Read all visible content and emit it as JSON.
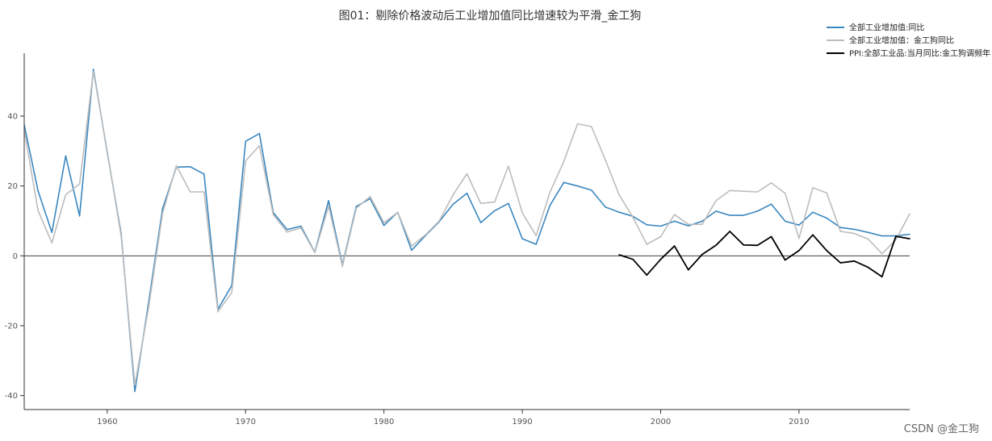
{
  "chart_data": {
    "type": "line",
    "title": "图01：剔除价格波动后工业增加值同比增速较为平滑_金工狗",
    "xlabel": "",
    "ylabel": "",
    "xlim": [
      1954,
      2018
    ],
    "ylim": [
      -44,
      58
    ],
    "x_ticks": [
      1960,
      1970,
      1980,
      1990,
      2000,
      2010
    ],
    "y_ticks": [
      -40,
      -20,
      0,
      20,
      40
    ],
    "zero_line": true,
    "grid": false,
    "legend_position": "top-right",
    "series": [
      {
        "name": "全部工业增加值:同比",
        "color": "#3a87bf",
        "x": [
          1954,
          1955,
          1956,
          1957,
          1958,
          1959,
          1960,
          1961,
          1962,
          1963,
          1964,
          1965,
          1966,
          1967,
          1968,
          1969,
          1970,
          1971,
          1972,
          1973,
          1974,
          1975,
          1976,
          1977,
          1978,
          1979,
          1980,
          1981,
          1982,
          1983,
          1984,
          1985,
          1986,
          1987,
          1988,
          1989,
          1990,
          1991,
          1992,
          1993,
          1994,
          1995,
          1996,
          1997,
          1998,
          1999,
          2000,
          2001,
          2002,
          2003,
          2004,
          2005,
          2006,
          2007,
          2008,
          2009,
          2010,
          2011,
          2012,
          2013,
          2014,
          2015,
          2016,
          2017,
          2018
        ],
        "values": [
          37.5,
          18.6,
          6.7,
          28.6,
          11.4,
          53.4,
          29.7,
          6.5,
          -38.8,
          -13.1,
          13.5,
          25.4,
          25.5,
          23.4,
          -15.3,
          -8.5,
          32.8,
          35.0,
          12.4,
          7.5,
          8.5,
          1.0,
          15.8,
          -2.6,
          14.1,
          16.4,
          8.7,
          12.5,
          1.6,
          5.8,
          9.8,
          14.8,
          17.9,
          9.5,
          12.9,
          15.0,
          4.9,
          3.3,
          14.4,
          21.0,
          20.0,
          18.8,
          14.0,
          12.5,
          11.3,
          8.9,
          8.5,
          9.9,
          8.6,
          9.9,
          12.8,
          11.6,
          11.6,
          12.8,
          14.8,
          9.9,
          8.8,
          12.5,
          10.8,
          8.1,
          7.6,
          6.7,
          5.7,
          5.7,
          6.2
        ]
      },
      {
        "name": "全部工业增加值：金工狗同比",
        "color": "#bdbdbd",
        "x": [
          1954,
          1955,
          1956,
          1957,
          1958,
          1959,
          1960,
          1961,
          1962,
          1963,
          1964,
          1965,
          1966,
          1967,
          1968,
          1969,
          1970,
          1971,
          1972,
          1973,
          1974,
          1975,
          1976,
          1977,
          1978,
          1979,
          1980,
          1981,
          1982,
          1983,
          1984,
          1985,
          1986,
          1987,
          1988,
          1989,
          1990,
          1991,
          1992,
          1993,
          1994,
          1995,
          1996,
          1997,
          1998,
          1999,
          2000,
          2001,
          2002,
          2003,
          2004,
          2005,
          2006,
          2007,
          2008,
          2009,
          2010,
          2011,
          2012,
          2013,
          2014,
          2015,
          2016,
          2017,
          2018
        ],
        "values": [
          36.0,
          13.0,
          3.7,
          17.5,
          20.6,
          52.8,
          30.0,
          5.8,
          -37.0,
          -14.5,
          12.2,
          25.8,
          18.3,
          18.3,
          -16.0,
          -10.5,
          27.2,
          31.5,
          11.8,
          6.8,
          8.0,
          0.9,
          14.2,
          -3.0,
          13.6,
          17.0,
          9.5,
          12.5,
          2.8,
          6.0,
          10.0,
          17.5,
          23.5,
          15.0,
          15.4,
          25.7,
          12.3,
          5.8,
          18.2,
          27.0,
          37.8,
          37.0,
          27.5,
          17.5,
          11.0,
          3.3,
          5.5,
          11.8,
          9.0,
          9.0,
          15.8,
          18.7,
          18.5,
          18.3,
          20.9,
          17.9,
          5.0,
          19.5,
          18.0,
          7.0,
          6.4,
          4.8,
          0.6,
          4.6,
          12.0
        ]
      },
      {
        "name": "PPI:全部工业品:当月同比:金工狗调频年",
        "color": "#000000",
        "x": [
          1997,
          1998,
          1999,
          2000,
          2001,
          2002,
          2003,
          2004,
          2005,
          2006,
          2007,
          2008,
          2009,
          2010,
          2011,
          2012,
          2013,
          2014,
          2015,
          2016,
          2017,
          2018
        ],
        "values": [
          0.3,
          -1.0,
          -5.5,
          -1.0,
          2.8,
          -4.0,
          0.4,
          3.0,
          7.0,
          3.1,
          3.0,
          5.5,
          -1.2,
          1.5,
          6.0,
          1.5,
          -2.0,
          -1.5,
          -3.3,
          -6.0,
          5.6,
          4.9
        ]
      }
    ]
  },
  "watermark": "CSDN @金工狗"
}
